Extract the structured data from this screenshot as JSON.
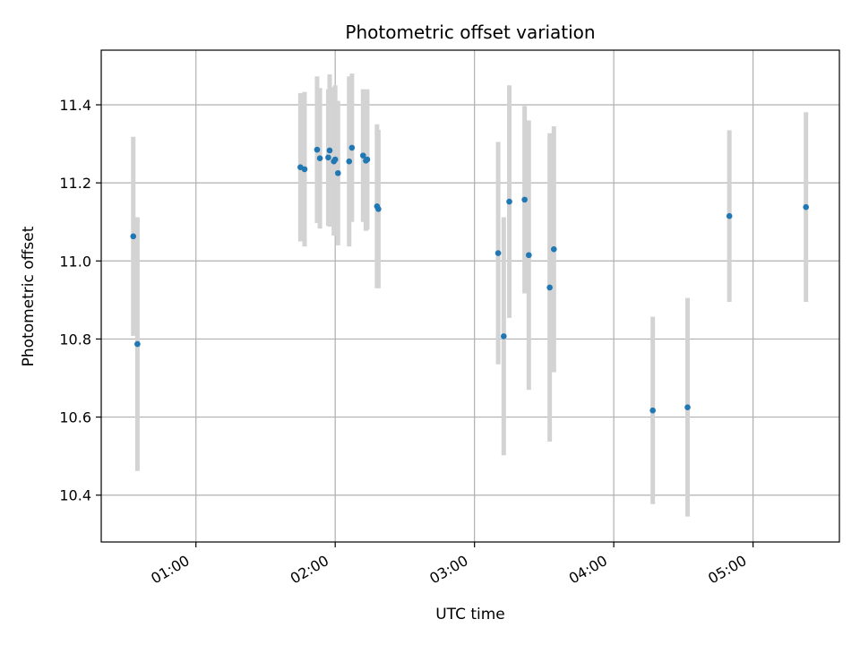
{
  "chart_data": {
    "type": "scatter",
    "title": "Photometric offset variation",
    "xlabel": "UTC time",
    "ylabel": "Photometric offset",
    "x_unit": "hours",
    "xlim": [
      0.32,
      5.62
    ],
    "ylim": [
      10.28,
      11.54
    ],
    "x_ticks": [
      {
        "value": 1,
        "label": "01:00"
      },
      {
        "value": 2,
        "label": "02:00"
      },
      {
        "value": 3,
        "label": "03:00"
      },
      {
        "value": 4,
        "label": "04:00"
      },
      {
        "value": 5,
        "label": "05:00"
      }
    ],
    "y_ticks": [
      {
        "value": 10.4,
        "label": "10.4"
      },
      {
        "value": 10.6,
        "label": "10.6"
      },
      {
        "value": 10.8,
        "label": "10.8"
      },
      {
        "value": 11.0,
        "label": "11.0"
      },
      {
        "value": 11.2,
        "label": "11.2"
      },
      {
        "value": 11.4,
        "label": "11.4"
      }
    ],
    "grid": true,
    "colors": {
      "point": "#1f77b4",
      "errorbar": "#d3d3d3",
      "grid": "#b0b0b0"
    },
    "points": [
      {
        "x": 0.55,
        "y": 11.063,
        "err": 0.255
      },
      {
        "x": 0.58,
        "y": 10.787,
        "err": 0.325
      },
      {
        "x": 1.75,
        "y": 11.24,
        "err": 0.19
      },
      {
        "x": 1.78,
        "y": 11.235,
        "err": 0.198
      },
      {
        "x": 1.87,
        "y": 11.285,
        "err": 0.188
      },
      {
        "x": 1.89,
        "y": 11.263,
        "err": 0.18
      },
      {
        "x": 1.95,
        "y": 11.265,
        "err": 0.175
      },
      {
        "x": 1.96,
        "y": 11.283,
        "err": 0.195
      },
      {
        "x": 1.99,
        "y": 11.255,
        "err": 0.19
      },
      {
        "x": 2.0,
        "y": 11.26,
        "err": 0.19
      },
      {
        "x": 2.02,
        "y": 11.225,
        "err": 0.185
      },
      {
        "x": 2.1,
        "y": 11.255,
        "err": 0.218
      },
      {
        "x": 2.12,
        "y": 11.29,
        "err": 0.19
      },
      {
        "x": 2.2,
        "y": 11.27,
        "err": 0.17
      },
      {
        "x": 2.22,
        "y": 11.257,
        "err": 0.18
      },
      {
        "x": 2.23,
        "y": 11.26,
        "err": 0.18
      },
      {
        "x": 2.3,
        "y": 11.14,
        "err": 0.21
      },
      {
        "x": 2.31,
        "y": 11.133,
        "err": 0.203
      },
      {
        "x": 3.17,
        "y": 11.02,
        "err": 0.285
      },
      {
        "x": 3.21,
        "y": 10.807,
        "err": 0.305
      },
      {
        "x": 3.25,
        "y": 11.152,
        "err": 0.298
      },
      {
        "x": 3.36,
        "y": 11.157,
        "err": 0.24
      },
      {
        "x": 3.39,
        "y": 11.015,
        "err": 0.345
      },
      {
        "x": 3.54,
        "y": 10.932,
        "err": 0.395
      },
      {
        "x": 3.57,
        "y": 11.03,
        "err": 0.315
      },
      {
        "x": 4.28,
        "y": 10.617,
        "err": 0.24
      },
      {
        "x": 4.53,
        "y": 10.625,
        "err": 0.28
      },
      {
        "x": 4.83,
        "y": 11.115,
        "err": 0.22
      },
      {
        "x": 5.38,
        "y": 11.138,
        "err": 0.243
      }
    ]
  }
}
